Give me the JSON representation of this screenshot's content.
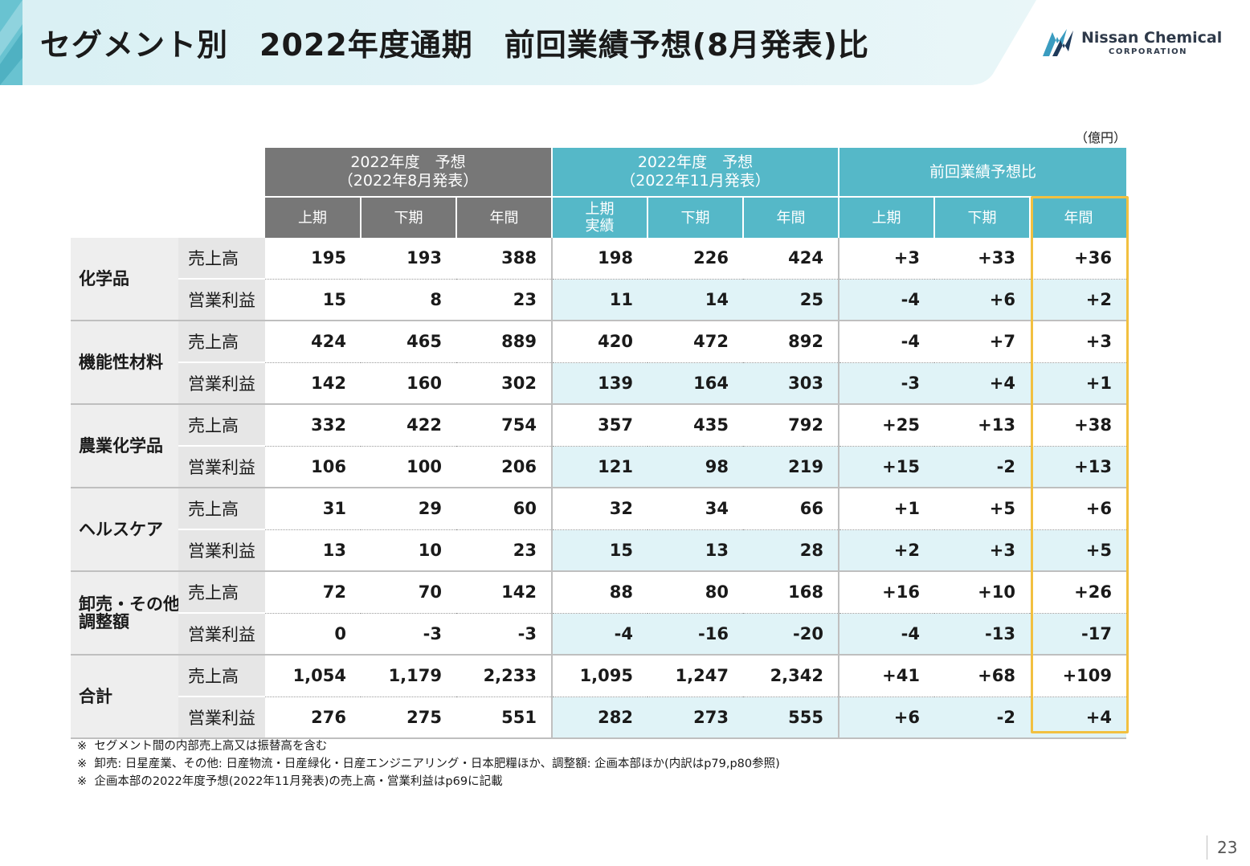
{
  "header": {
    "title": "セグメント別　2022年度通期　前回業績予想(8月発表)比",
    "logo": {
      "name": "Nissan Chemical",
      "sub": "CORPORATION"
    }
  },
  "unit": "（億円）",
  "colors": {
    "gray_header": "#777777",
    "teal_header": "#55b8c8",
    "highlight": "#f2c040",
    "light_blue": "#e0f3f7"
  },
  "table": {
    "groups": [
      {
        "label": "2022年度　予想\n（2022年8月発表）"
      },
      {
        "label": "2022年度　予想\n（2022年11月発表）"
      },
      {
        "label": "前回業績予想比"
      }
    ],
    "subheaders": [
      "上期",
      "下期",
      "年間",
      "上期\n実績",
      "下期",
      "年間",
      "上期",
      "下期",
      "年間"
    ],
    "segments": [
      {
        "name": "化学品",
        "rows": [
          {
            "metric": "売上高",
            "values": [
              "195",
              "193",
              "388",
              "198",
              "226",
              "424",
              "+3",
              "+33",
              "+36"
            ]
          },
          {
            "metric": "営業利益",
            "values": [
              "15",
              "8",
              "23",
              "11",
              "14",
              "25",
              "-4",
              "+6",
              "+2"
            ]
          }
        ]
      },
      {
        "name": "機能性材料",
        "rows": [
          {
            "metric": "売上高",
            "values": [
              "424",
              "465",
              "889",
              "420",
              "472",
              "892",
              "-4",
              "+7",
              "+3"
            ]
          },
          {
            "metric": "営業利益",
            "values": [
              "142",
              "160",
              "302",
              "139",
              "164",
              "303",
              "-3",
              "+4",
              "+1"
            ]
          }
        ]
      },
      {
        "name": "農業化学品",
        "rows": [
          {
            "metric": "売上高",
            "values": [
              "332",
              "422",
              "754",
              "357",
              "435",
              "792",
              "+25",
              "+13",
              "+38"
            ]
          },
          {
            "metric": "営業利益",
            "values": [
              "106",
              "100",
              "206",
              "121",
              "98",
              "219",
              "+15",
              "-2",
              "+13"
            ]
          }
        ]
      },
      {
        "name": "ヘルスケア",
        "rows": [
          {
            "metric": "売上高",
            "values": [
              "31",
              "29",
              "60",
              "32",
              "34",
              "66",
              "+1",
              "+5",
              "+6"
            ]
          },
          {
            "metric": "営業利益",
            "values": [
              "13",
              "10",
              "23",
              "15",
              "13",
              "28",
              "+2",
              "+3",
              "+5"
            ]
          }
        ]
      },
      {
        "name": "卸売・その他・\n調整額",
        "rows": [
          {
            "metric": "売上高",
            "values": [
              "72",
              "70",
              "142",
              "88",
              "80",
              "168",
              "+16",
              "+10",
              "+26"
            ]
          },
          {
            "metric": "営業利益",
            "values": [
              "0",
              "-3",
              "-3",
              "-4",
              "-16",
              "-20",
              "-4",
              "-13",
              "-17"
            ]
          }
        ]
      },
      {
        "name": "合計",
        "rows": [
          {
            "metric": "売上高",
            "values": [
              "1,054",
              "1,179",
              "2,233",
              "1,095",
              "1,247",
              "2,342",
              "+41",
              "+68",
              "+109"
            ]
          },
          {
            "metric": "営業利益",
            "values": [
              "276",
              "275",
              "551",
              "282",
              "273",
              "555",
              "+6",
              "-2",
              "+4"
            ]
          }
        ]
      }
    ]
  },
  "notes": [
    "※  セグメント間の内部売上高又は振替高を含む",
    "※  卸売: 日星産業、その他: 日産物流・日産緑化・日産エンジニアリング・日本肥糧ほか、調整額: 企画本部ほか(内訳はp79,p80参照)",
    "※  企画本部の2022年度予想(2022年11月発表)の売上高・営業利益はp69に記載"
  ],
  "page_number": "23"
}
